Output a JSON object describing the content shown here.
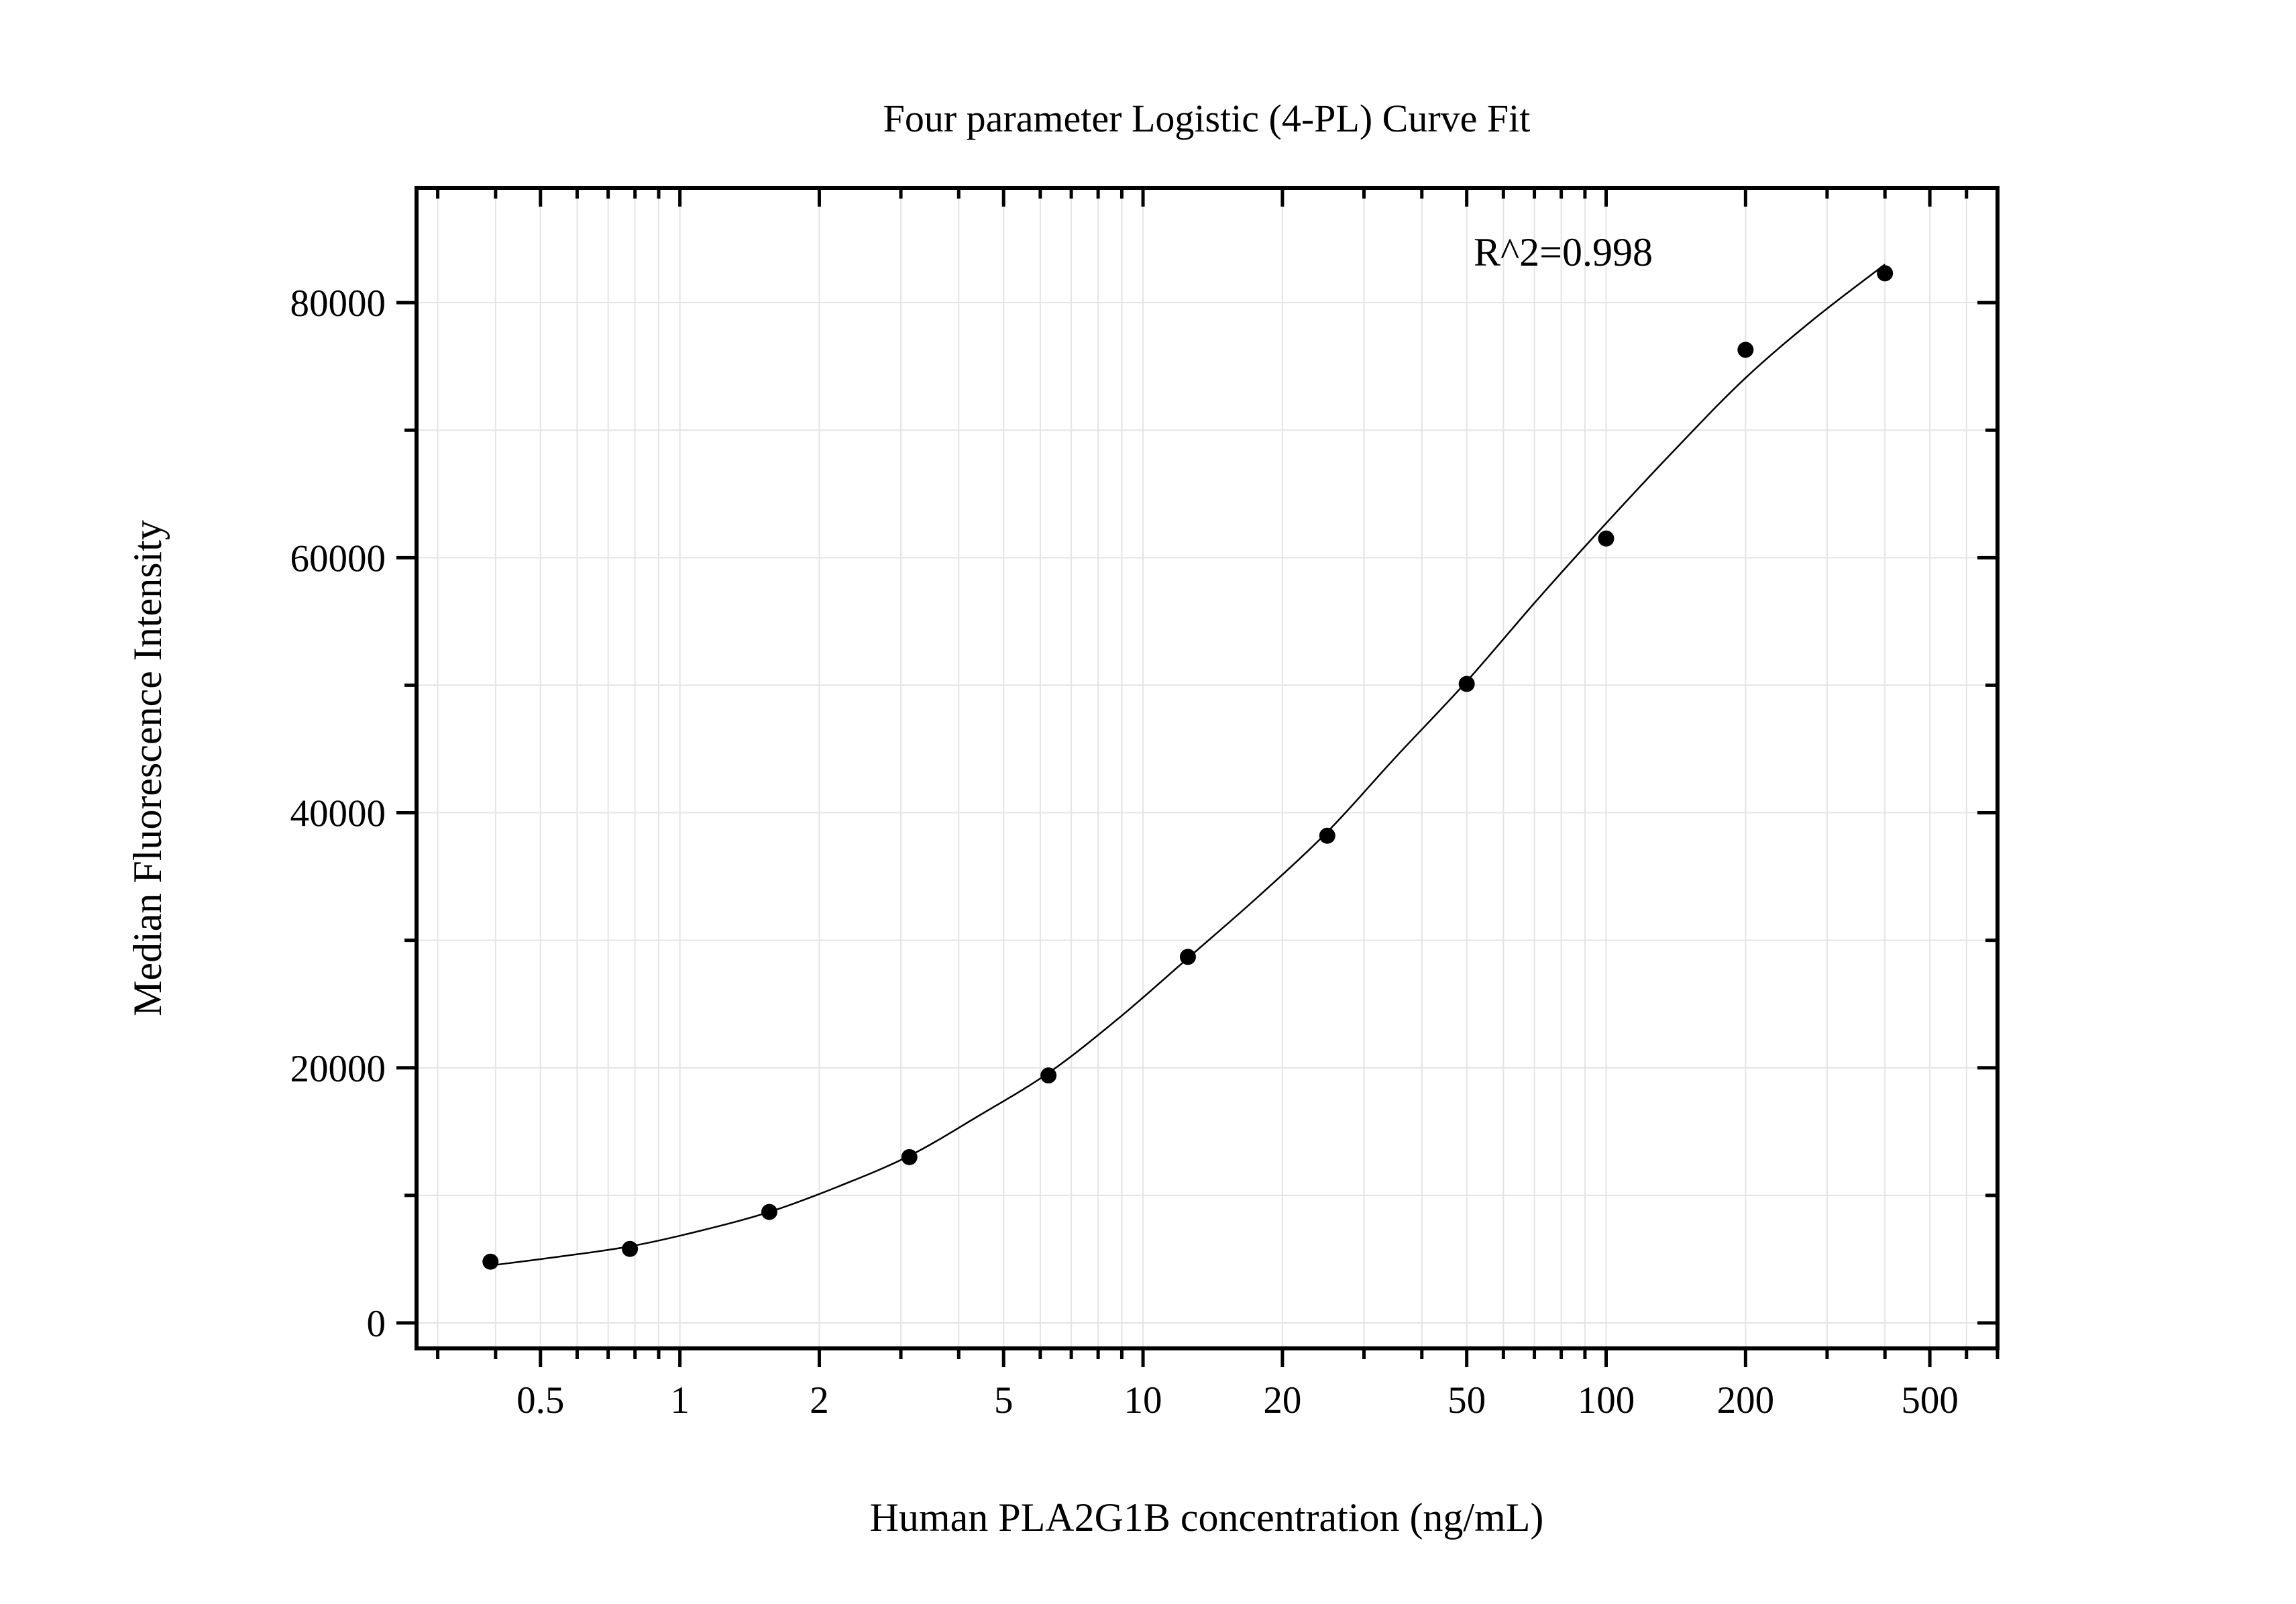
{
  "chart_data": {
    "type": "scatter",
    "title": "Four parameter Logistic (4-PL) Curve Fit",
    "xlabel": "Human PLA2G1B concentration (ng/mL)",
    "ylabel": "Median Fluorescence Intensity",
    "x_scale": "log",
    "xlim": [
      0.27,
      700
    ],
    "ylim": [
      -2000,
      89000
    ],
    "grid": true,
    "x_ticks": [
      {
        "value": 0.5,
        "label": "0.5"
      },
      {
        "value": 1,
        "label": "1"
      },
      {
        "value": 2,
        "label": "2"
      },
      {
        "value": 5,
        "label": "5"
      },
      {
        "value": 10,
        "label": "10"
      },
      {
        "value": 20,
        "label": "20"
      },
      {
        "value": 50,
        "label": "50"
      },
      {
        "value": 100,
        "label": "100"
      },
      {
        "value": 200,
        "label": "200"
      },
      {
        "value": 500,
        "label": "500"
      }
    ],
    "y_ticks": [
      {
        "value": 0,
        "label": "0"
      },
      {
        "value": 20000,
        "label": "20000"
      },
      {
        "value": 40000,
        "label": "40000"
      },
      {
        "value": 60000,
        "label": "60000"
      },
      {
        "value": 80000,
        "label": "80000"
      }
    ],
    "series": [
      {
        "x": [
          0.39,
          0.78,
          1.56,
          3.13,
          6.25,
          12.5,
          25,
          50,
          100,
          200,
          400
        ],
        "y": [
          4800,
          5800,
          8700,
          13000,
          19400,
          28700,
          38200,
          50100,
          61500,
          76300,
          82300
        ]
      }
    ],
    "fit_curve": {
      "model": "4-PL",
      "x": [
        0.39,
        0.55,
        0.78,
        1.1,
        1.56,
        2.2,
        3.13,
        4.4,
        6.25,
        8.8,
        12.5,
        17.7,
        25,
        35,
        50,
        71,
        100,
        141,
        200,
        283,
        400
      ],
      "y": [
        4500,
        5200,
        6000,
        7200,
        8700,
        10700,
        13100,
        16200,
        19600,
        23800,
        28600,
        33400,
        38500,
        44300,
        50300,
        56700,
        62700,
        68500,
        74100,
        78800,
        83000
      ]
    },
    "annotations": [
      {
        "text": "R^2=0.998"
      }
    ]
  }
}
